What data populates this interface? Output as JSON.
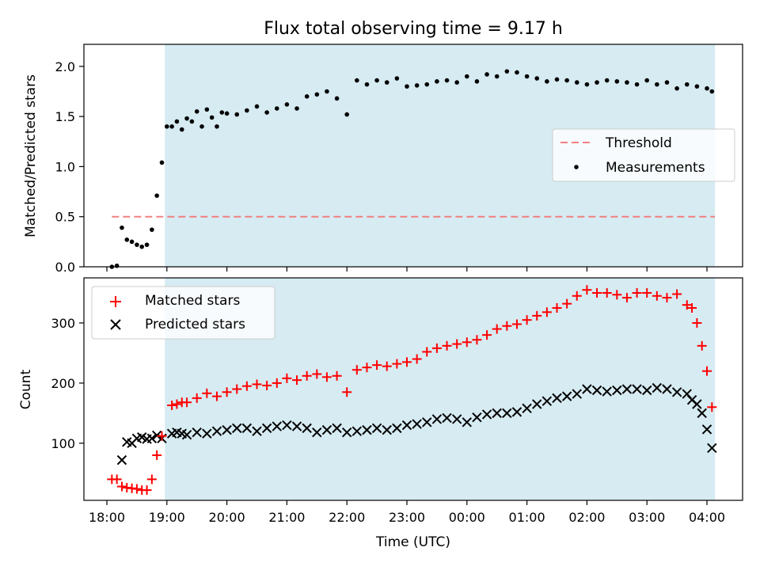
{
  "chart_data": {
    "type": "scatter",
    "title": "Flux total observing time = 9.17 h",
    "xlabel": "Time (UTC)",
    "x_tick_labels": [
      "18:00",
      "19:00",
      "20:00",
      "21:00",
      "22:00",
      "23:00",
      "00:00",
      "01:00",
      "02:00",
      "03:00",
      "04:00"
    ],
    "shaded_interval": [
      "18:58",
      "04:08"
    ],
    "colors": {
      "shade": "#add8e6",
      "threshold": "#f08080",
      "measurements": "#000000",
      "matched": "#ff0000",
      "predicted": "#000000"
    },
    "panels": [
      {
        "ylabel": "Matched/Predicted stars",
        "ylim": [
          0,
          2.22
        ],
        "yticks": [
          "0.0",
          "0.5",
          "1.0",
          "1.5",
          "2.0"
        ],
        "legend_position": "center-right",
        "threshold": {
          "name": "Threshold",
          "value": 0.5,
          "x_range": [
            "18:05",
            "04:08"
          ]
        },
        "series": [
          {
            "name": "Measurements",
            "marker": "dot",
            "x": [
              "18:05",
              "18:10",
              "18:15",
              "18:20",
              "18:25",
              "18:30",
              "18:35",
              "18:40",
              "18:45",
              "18:50",
              "18:55",
              "19:00",
              "19:05",
              "19:10",
              "19:15",
              "19:20",
              "19:25",
              "19:30",
              "19:35",
              "19:40",
              "19:45",
              "19:50",
              "19:55",
              "20:00",
              "20:10",
              "20:20",
              "20:30",
              "20:40",
              "20:50",
              "21:00",
              "21:10",
              "21:20",
              "21:30",
              "21:40",
              "21:50",
              "22:00",
              "22:10",
              "22:20",
              "22:30",
              "22:40",
              "22:50",
              "23:00",
              "23:10",
              "23:20",
              "23:30",
              "23:40",
              "23:50",
              "00:00",
              "00:10",
              "00:20",
              "00:30",
              "00:40",
              "00:50",
              "01:00",
              "01:10",
              "01:20",
              "01:30",
              "01:40",
              "01:50",
              "02:00",
              "02:10",
              "02:20",
              "02:30",
              "02:40",
              "02:50",
              "03:00",
              "03:10",
              "03:20",
              "03:30",
              "03:40",
              "03:50",
              "04:00",
              "04:05"
            ],
            "y": [
              0.0,
              0.01,
              0.39,
              0.27,
              0.25,
              0.22,
              0.2,
              0.22,
              0.37,
              0.71,
              1.04,
              1.4,
              1.4,
              1.45,
              1.37,
              1.48,
              1.45,
              1.55,
              1.4,
              1.57,
              1.49,
              1.4,
              1.54,
              1.53,
              1.52,
              1.56,
              1.6,
              1.54,
              1.58,
              1.62,
              1.58,
              1.7,
              1.72,
              1.75,
              1.68,
              1.52,
              1.86,
              1.82,
              1.86,
              1.84,
              1.88,
              1.8,
              1.81,
              1.82,
              1.85,
              1.86,
              1.84,
              1.9,
              1.85,
              1.92,
              1.9,
              1.95,
              1.94,
              1.9,
              1.88,
              1.85,
              1.87,
              1.86,
              1.84,
              1.82,
              1.84,
              1.86,
              1.85,
              1.84,
              1.82,
              1.86,
              1.82,
              1.84,
              1.78,
              1.82,
              1.8,
              1.78,
              1.75
            ]
          }
        ]
      },
      {
        "ylabel": "Count",
        "ylim": [
          5,
          375
        ],
        "yticks": [
          "100",
          "200",
          "300"
        ],
        "legend_position": "top-left",
        "series": [
          {
            "name": "Matched stars",
            "marker": "plus",
            "x": [
              "18:05",
              "18:10",
              "18:15",
              "18:20",
              "18:25",
              "18:30",
              "18:35",
              "18:40",
              "18:45",
              "18:50",
              "18:55",
              "19:05",
              "19:10",
              "19:15",
              "19:20",
              "19:30",
              "19:40",
              "19:50",
              "20:00",
              "20:10",
              "20:20",
              "20:30",
              "20:40",
              "20:50",
              "21:00",
              "21:10",
              "21:20",
              "21:30",
              "21:40",
              "21:50",
              "22:00",
              "22:10",
              "22:20",
              "22:30",
              "22:40",
              "22:50",
              "23:00",
              "23:10",
              "23:20",
              "23:30",
              "23:40",
              "23:50",
              "00:00",
              "00:10",
              "00:20",
              "00:30",
              "00:40",
              "00:50",
              "01:00",
              "01:10",
              "01:20",
              "01:30",
              "01:40",
              "01:50",
              "02:00",
              "02:10",
              "02:20",
              "02:30",
              "02:40",
              "02:50",
              "03:00",
              "03:10",
              "03:20",
              "03:30",
              "03:40",
              "03:45",
              "03:50",
              "03:55",
              "04:00",
              "04:05"
            ],
            "y": [
              40,
              40,
              28,
              26,
              25,
              24,
              22,
              22,
              40,
              80,
              112,
              163,
              165,
              168,
              168,
              175,
              183,
              178,
              185,
              190,
              195,
              198,
              196,
              200,
              208,
              205,
              212,
              215,
              210,
              212,
              185,
              222,
              226,
              230,
              228,
              232,
              235,
              240,
              252,
              258,
              262,
              265,
              268,
              272,
              280,
              290,
              295,
              298,
              305,
              312,
              318,
              325,
              332,
              345,
              355,
              350,
              350,
              347,
              342,
              350,
              350,
              345,
              342,
              348,
              330,
              325,
              300,
              262,
              220,
              160
            ]
          },
          {
            "name": "Predicted stars",
            "marker": "x",
            "x": [
              "18:15",
              "18:20",
              "18:25",
              "18:30",
              "18:35",
              "18:40",
              "18:45",
              "18:50",
              "18:55",
              "19:05",
              "19:10",
              "19:15",
              "19:20",
              "19:30",
              "19:40",
              "19:50",
              "20:00",
              "20:10",
              "20:20",
              "20:30",
              "20:40",
              "20:50",
              "21:00",
              "21:10",
              "21:20",
              "21:30",
              "21:40",
              "21:50",
              "22:00",
              "22:10",
              "22:20",
              "22:30",
              "22:40",
              "22:50",
              "23:00",
              "23:10",
              "23:20",
              "23:30",
              "23:40",
              "23:50",
              "00:00",
              "00:10",
              "00:20",
              "00:30",
              "00:40",
              "00:50",
              "01:00",
              "01:10",
              "01:20",
              "01:30",
              "01:40",
              "01:50",
              "02:00",
              "02:10",
              "02:20",
              "02:30",
              "02:40",
              "02:50",
              "03:00",
              "03:10",
              "03:20",
              "03:30",
              "03:40",
              "03:45",
              "03:50",
              "03:55",
              "04:00",
              "04:05"
            ],
            "y": [
              72,
              102,
              100,
              108,
              110,
              107,
              108,
              113,
              108,
              116,
              118,
              116,
              114,
              118,
              116,
              120,
              122,
              125,
              125,
              120,
              125,
              128,
              130,
              128,
              125,
              118,
              122,
              125,
              118,
              120,
              122,
              125,
              122,
              125,
              130,
              132,
              135,
              140,
              142,
              140,
              135,
              143,
              148,
              150,
              150,
              152,
              158,
              165,
              170,
              175,
              178,
              182,
              190,
              188,
              186,
              188,
              190,
              190,
              188,
              192,
              190,
              185,
              182,
              172,
              165,
              150,
              123,
              92
            ]
          }
        ]
      }
    ]
  }
}
